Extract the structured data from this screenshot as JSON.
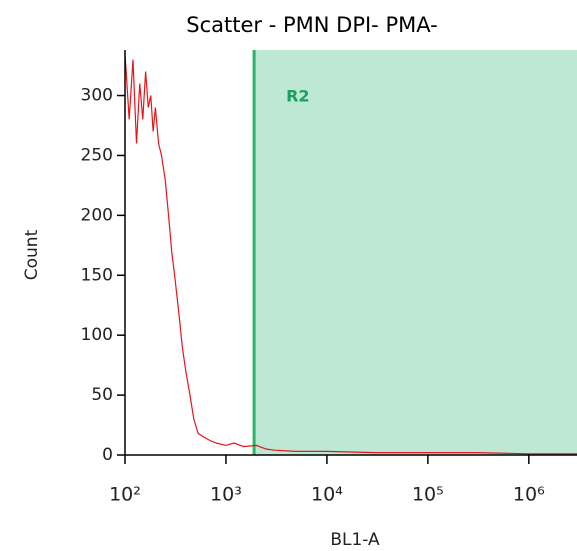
{
  "chart_data": {
    "type": "line",
    "title": "Scatter - PMN DPI- PMA-",
    "x_label": "BL1-A",
    "y_label": "Count",
    "xscale": "log",
    "xlim": [
      100,
      3000000
    ],
    "ylim": [
      0,
      338
    ],
    "xticks": [
      {
        "value": 100,
        "label": "10²"
      },
      {
        "value": 1000,
        "label": "10³"
      },
      {
        "value": 10000,
        "label": "10⁴"
      },
      {
        "value": 100000,
        "label": "10⁵"
      },
      {
        "value": 1000000,
        "label": "10⁶"
      }
    ],
    "yticks": [
      0,
      50,
      100,
      150,
      200,
      250,
      300
    ],
    "x": [
      100,
      110,
      120,
      130,
      140,
      150,
      160,
      170,
      180,
      190,
      200,
      215,
      230,
      250,
      270,
      290,
      310,
      340,
      370,
      400,
      440,
      480,
      530,
      600,
      700,
      800,
      1000,
      1200,
      1500,
      2000,
      2500,
      3000,
      5000,
      10000,
      30000,
      100000,
      300000,
      1000000,
      3000000
    ],
    "series": [
      {
        "name": "Count",
        "color": "#e8141b",
        "values": [
          335,
          280,
          330,
          260,
          310,
          280,
          320,
          290,
          300,
          270,
          290,
          260,
          250,
          230,
          200,
          170,
          150,
          120,
          90,
          70,
          50,
          30,
          18,
          15,
          12,
          10,
          8,
          10,
          7,
          8,
          5,
          4,
          3,
          3,
          2,
          2,
          2,
          1,
          1
        ]
      }
    ],
    "gate": {
      "label": "R2",
      "x": 1900,
      "color": "#2db36a",
      "fill": "#bde8d3"
    }
  }
}
